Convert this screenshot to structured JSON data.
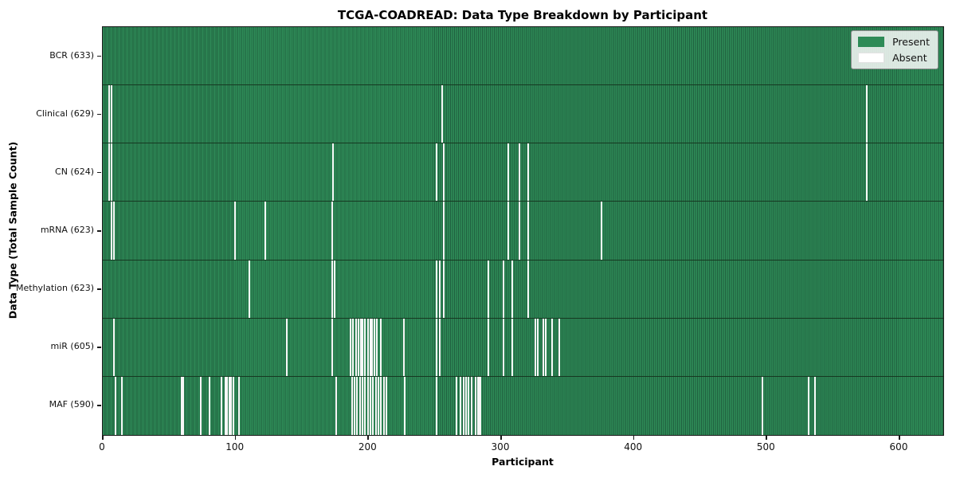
{
  "chart_data": {
    "type": "heatmap",
    "title": "TCGA-COADREAD: Data Type Breakdown by Participant",
    "xlabel": "Participant",
    "ylabel": "Data Type (Total Sample Count)",
    "n_participants": 633,
    "x_ticks": [
      0,
      100,
      200,
      300,
      400,
      500,
      600
    ],
    "legend": [
      {
        "label": "Present",
        "color": "#2e8b57"
      },
      {
        "label": "Absent",
        "color": "#ffffff"
      }
    ],
    "colors": {
      "present": "#2e8b57",
      "present_edge": "#20603f",
      "absent": "#ffffff"
    },
    "rows": [
      {
        "label": "BCR (633)",
        "data_type": "BCR",
        "present_count": 633,
        "absent": []
      },
      {
        "label": "Clinical (629)",
        "data_type": "Clinical",
        "present_count": 629,
        "absent": [
          4,
          6,
          255,
          575
        ]
      },
      {
        "label": "CN (624)",
        "data_type": "CN",
        "present_count": 624,
        "absent": [
          4,
          6,
          173,
          251,
          256,
          305,
          313,
          320,
          575
        ]
      },
      {
        "label": "mRNA (623)",
        "data_type": "mRNA",
        "present_count": 623,
        "absent": [
          6,
          8,
          99,
          122,
          172,
          256,
          305,
          313,
          320,
          375
        ]
      },
      {
        "label": "Methylation (623)",
        "data_type": "Methylation",
        "present_count": 623,
        "absent": [
          110,
          172,
          174,
          251,
          253,
          256,
          290,
          301,
          308,
          320
        ]
      },
      {
        "label": "miR (605)",
        "data_type": "miR",
        "present_count": 605,
        "absent": [
          8,
          138,
          172,
          186,
          188,
          190,
          192,
          194,
          195,
          197,
          199,
          201,
          202,
          204,
          206,
          209,
          226,
          251,
          253,
          290,
          301,
          308,
          325,
          327,
          331,
          333,
          338,
          343
        ]
      },
      {
        "label": "MAF (590)",
        "data_type": "MAF",
        "present_count": 590,
        "absent": [
          9,
          14,
          59,
          60,
          73,
          80,
          89,
          92,
          93,
          95,
          96,
          98,
          102,
          175,
          187,
          189,
          191,
          193,
          195,
          197,
          199,
          201,
          203,
          205,
          207,
          209,
          211,
          213,
          227,
          251,
          266,
          269,
          271,
          273,
          275,
          277,
          280,
          282,
          283,
          284,
          496,
          531,
          536
        ]
      }
    ]
  }
}
